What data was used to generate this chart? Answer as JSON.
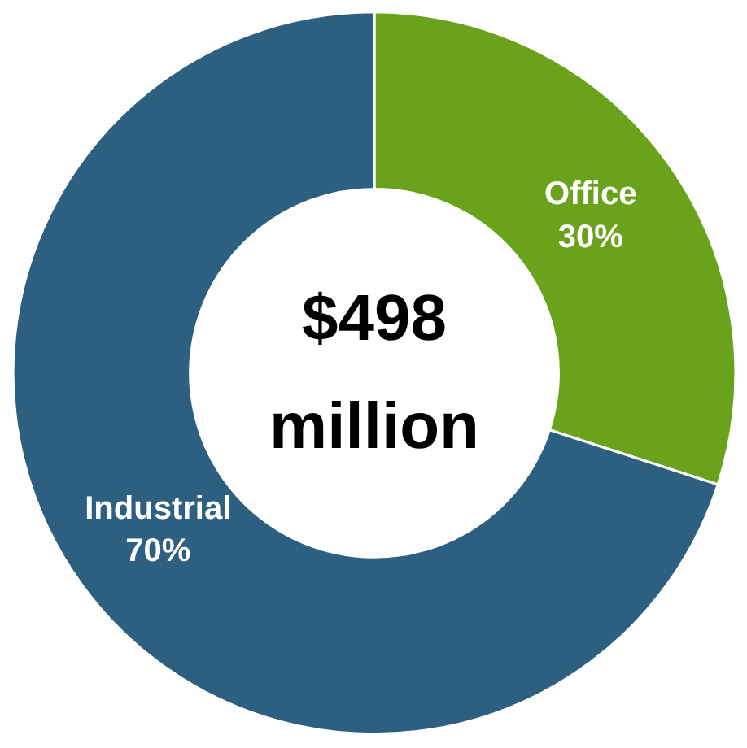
{
  "chart_data": {
    "type": "donut",
    "categories": [
      "Office",
      "Industrial"
    ],
    "values": [
      30,
      70
    ],
    "colors": [
      "#6aa21c",
      "#2d5f80"
    ],
    "value_labels": [
      "30%",
      "70%"
    ],
    "annotations": [
      "$498",
      "million"
    ]
  }
}
